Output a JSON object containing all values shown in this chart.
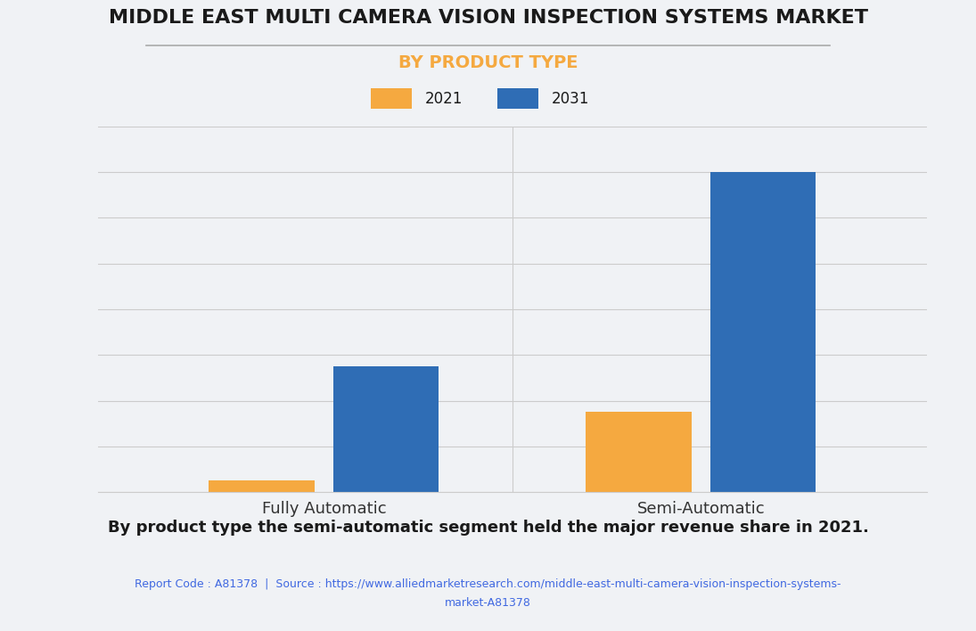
{
  "title": "MIDDLE EAST MULTI CAMERA VISION INSPECTION SYSTEMS MARKET",
  "subtitle": "BY PRODUCT TYPE",
  "categories": [
    "Fully Automatic",
    "Semi-Automatic"
  ],
  "years": [
    "2021",
    "2031"
  ],
  "values_2021": [
    0.5,
    3.5
  ],
  "values_2031": [
    5.5,
    14.0
  ],
  "color_2021": "#F5A940",
  "color_2031": "#2F6DB5",
  "subtitle_color": "#F5A940",
  "title_color": "#1a1a1a",
  "background_color": "#f0f2f5",
  "annotation": "By product type the semi-automatic segment held the major revenue share in 2021.",
  "source_text": "Report Code : A81378  |  Source : https://www.alliedmarketresearch.com/middle-east-multi-camera-vision-inspection-systems-\nmarket-A81378",
  "source_color": "#4169E1",
  "ylim": [
    0,
    16
  ],
  "hrule_color": "#aaaaaa"
}
